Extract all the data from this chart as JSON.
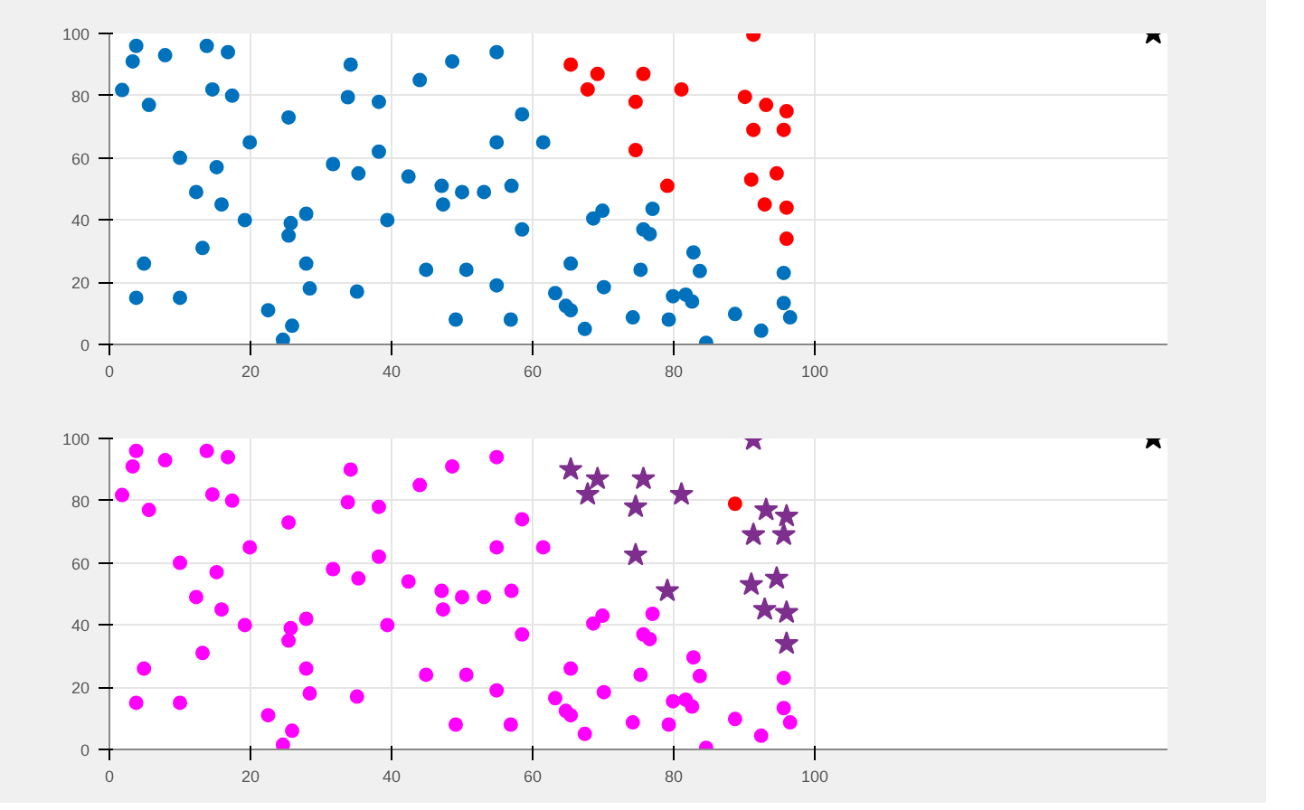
{
  "chart_data": [
    {
      "type": "scatter",
      "xlim": [
        0,
        150
      ],
      "ylim": [
        0,
        100
      ],
      "xticks": [
        0,
        20,
        40,
        60,
        80,
        100
      ],
      "yticks": [
        0,
        20,
        40,
        60,
        80,
        100
      ],
      "grid": true,
      "series": [
        {
          "color": "#0072bd",
          "marker": "circle",
          "x": [
            1.8,
            3.8,
            3.3,
            5.6,
            4.9,
            3.8,
            7.9,
            10,
            10,
            12.3,
            13.2,
            13.8,
            14.6,
            16.8,
            17.4,
            15.2,
            15.9,
            19.2,
            19.9,
            22.5,
            24.6,
            25.9,
            25.4,
            25.7,
            25.4,
            27.9,
            27.9,
            28.4,
            31.7,
            34.2,
            33.8,
            35.3,
            35.1,
            38.2,
            38.2,
            39.4,
            42.4,
            44,
            44.9,
            47.1,
            47.3,
            48.6,
            49.1,
            50,
            50.6,
            53.1,
            54.9,
            54.9,
            54.9,
            56.9,
            57,
            58.5,
            58.5,
            61.5,
            63.2,
            65.4,
            64.7,
            65.4,
            67.4,
            69.9,
            68.6,
            77,
            75.7,
            76.6,
            82.8,
            75.3,
            83.7,
            95.6,
            70.1,
            79.9,
            81.7,
            82.6,
            95.6,
            74.2,
            79.3,
            88.7,
            96.5,
            92.4,
            84.6
          ],
          "values": [
            81.8,
            96,
            91,
            77,
            26,
            15,
            93,
            60,
            15,
            49,
            31,
            96,
            82,
            94,
            80,
            57,
            45,
            40,
            65,
            11,
            1.5,
            6,
            73,
            39,
            35,
            42,
            26,
            18,
            58,
            90,
            79.5,
            55,
            17,
            78,
            62,
            40,
            54,
            85,
            24,
            51,
            45,
            91,
            8,
            49,
            24,
            49,
            94,
            65,
            19,
            8,
            51,
            74,
            37,
            65,
            16.5,
            26,
            12.4,
            11,
            5,
            43,
            40.5,
            43.6,
            37,
            35.5,
            29.6,
            24,
            23.6,
            23,
            18.4,
            15.5,
            16,
            13.8,
            13.3,
            8.7,
            8,
            9.8,
            8.7,
            4.4,
            0.5
          ]
        },
        {
          "color": "#ff0000",
          "marker": "circle",
          "x": [
            91.3,
            65.4,
            69.2,
            75.7,
            67.8,
            81.1,
            74.6,
            90.1,
            93.1,
            96,
            91.3,
            95.6,
            74.6,
            79.1,
            91,
            94.6,
            92.9,
            96,
            96
          ],
          "values": [
            99.6,
            90,
            87,
            87,
            82,
            82,
            78,
            79.6,
            77,
            75,
            69,
            69,
            62.5,
            51,
            53,
            55,
            45,
            44,
            34
          ]
        },
        {
          "color": "#000000",
          "marker": "star",
          "x": [
            148
          ],
          "values": [
            100
          ]
        }
      ]
    },
    {
      "type": "scatter",
      "xlim": [
        0,
        150
      ],
      "ylim": [
        0,
        100
      ],
      "xticks": [
        0,
        20,
        40,
        60,
        80,
        100
      ],
      "yticks": [
        0,
        20,
        40,
        60,
        80,
        100
      ],
      "grid": true,
      "series": [
        {
          "color": "#ff00ff",
          "marker": "circle",
          "x": [
            1.8,
            3.8,
            3.3,
            5.6,
            4.9,
            3.8,
            7.9,
            10,
            10,
            12.3,
            13.2,
            13.8,
            14.6,
            16.8,
            17.4,
            15.2,
            15.9,
            19.2,
            19.9,
            22.5,
            24.6,
            25.9,
            25.4,
            25.7,
            25.4,
            27.9,
            27.9,
            28.4,
            31.7,
            34.2,
            33.8,
            35.3,
            35.1,
            38.2,
            38.2,
            39.4,
            42.4,
            44,
            44.9,
            47.1,
            47.3,
            48.6,
            49.1,
            50,
            50.6,
            53.1,
            54.9,
            54.9,
            54.9,
            56.9,
            57,
            58.5,
            58.5,
            61.5,
            63.2,
            65.4,
            64.7,
            65.4,
            67.4,
            69.9,
            68.6,
            77,
            75.7,
            76.6,
            82.8,
            75.3,
            83.7,
            95.6,
            70.1,
            79.9,
            81.7,
            82.6,
            95.6,
            74.2,
            79.3,
            88.7,
            96.5,
            92.4,
            84.6
          ],
          "values": [
            81.8,
            96,
            91,
            77,
            26,
            15,
            93,
            60,
            15,
            49,
            31,
            96,
            82,
            94,
            80,
            57,
            45,
            40,
            65,
            11,
            1.5,
            6,
            73,
            39,
            35,
            42,
            26,
            18,
            58,
            90,
            79.5,
            55,
            17,
            78,
            62,
            40,
            54,
            85,
            24,
            51,
            45,
            91,
            8,
            49,
            24,
            49,
            94,
            65,
            19,
            8,
            51,
            74,
            37,
            65,
            16.5,
            26,
            12.4,
            11,
            5,
            43,
            40.5,
            43.6,
            37,
            35.5,
            29.6,
            24,
            23.6,
            23,
            18.4,
            15.5,
            16,
            13.8,
            13.3,
            8.7,
            8,
            9.8,
            8.7,
            4.4,
            0.5
          ]
        },
        {
          "color": "#7e2f8e",
          "marker": "star",
          "x": [
            91.3,
            65.4,
            69.2,
            75.7,
            67.8,
            81.1,
            74.6,
            93.1,
            96,
            91.3,
            95.6,
            74.6,
            79.1,
            91,
            94.6,
            92.9,
            96,
            96
          ],
          "values": [
            99.6,
            90,
            87,
            87,
            82,
            82,
            78,
            77,
            75,
            69,
            69,
            62.5,
            51,
            53,
            55,
            45,
            44,
            34
          ]
        },
        {
          "color": "#ff0000",
          "marker": "circle",
          "x": [
            88.7
          ],
          "values": [
            79
          ]
        },
        {
          "color": "#000000",
          "marker": "star",
          "x": [
            148
          ],
          "values": [
            100
          ]
        }
      ]
    }
  ]
}
